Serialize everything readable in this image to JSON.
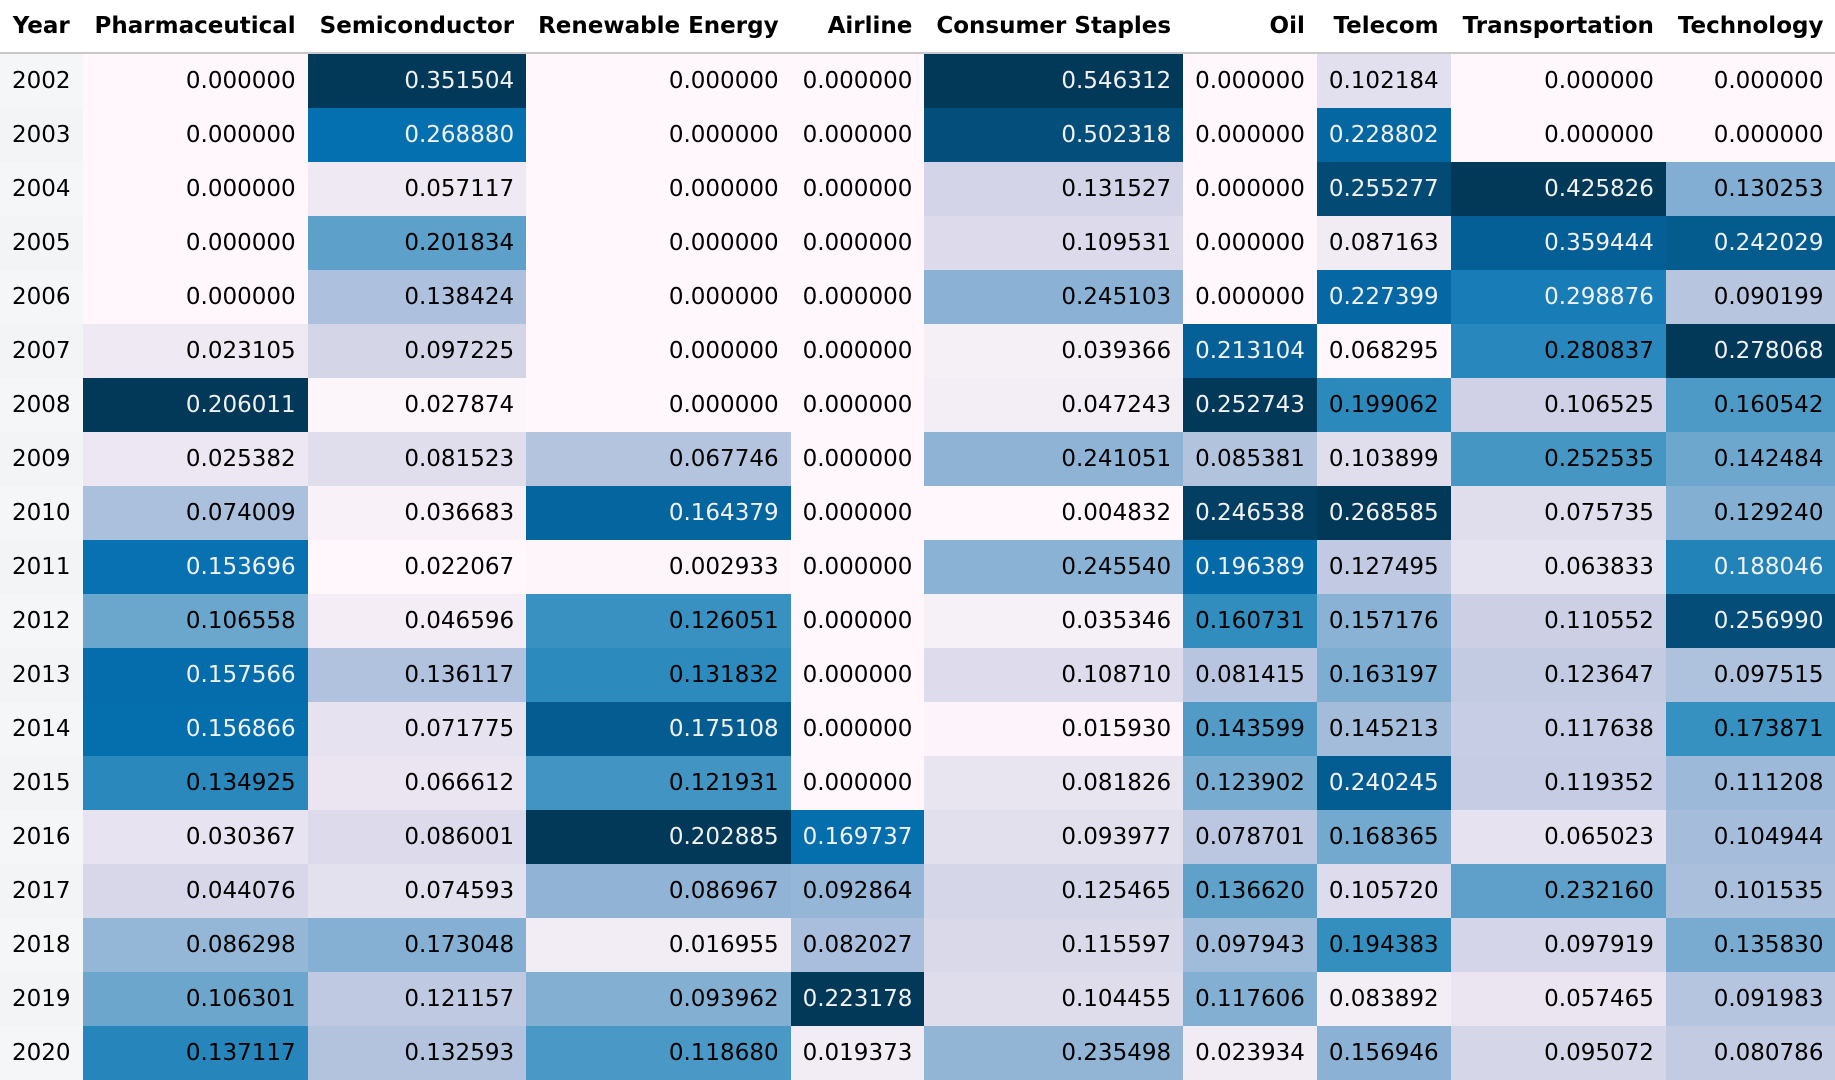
{
  "chart_data": {
    "type": "table",
    "index_label": "Year",
    "columns": [
      "Pharmaceutical",
      "Semiconductor",
      "Renewable Energy",
      "Airline",
      "Consumer Staples",
      "Oil",
      "Telecom",
      "Transportation",
      "Technology"
    ],
    "rows": [
      {
        "year": "2002",
        "values": [
          "0.000000",
          "0.351504",
          "0.000000",
          "0.000000",
          "0.546312",
          "0.000000",
          "0.102184",
          "0.000000",
          "0.000000"
        ]
      },
      {
        "year": "2003",
        "values": [
          "0.000000",
          "0.268880",
          "0.000000",
          "0.000000",
          "0.502318",
          "0.000000",
          "0.228802",
          "0.000000",
          "0.000000"
        ]
      },
      {
        "year": "2004",
        "values": [
          "0.000000",
          "0.057117",
          "0.000000",
          "0.000000",
          "0.131527",
          "0.000000",
          "0.255277",
          "0.425826",
          "0.130253"
        ]
      },
      {
        "year": "2005",
        "values": [
          "0.000000",
          "0.201834",
          "0.000000",
          "0.000000",
          "0.109531",
          "0.000000",
          "0.087163",
          "0.359444",
          "0.242029"
        ]
      },
      {
        "year": "2006",
        "values": [
          "0.000000",
          "0.138424",
          "0.000000",
          "0.000000",
          "0.245103",
          "0.000000",
          "0.227399",
          "0.298876",
          "0.090199"
        ]
      },
      {
        "year": "2007",
        "values": [
          "0.023105",
          "0.097225",
          "0.000000",
          "0.000000",
          "0.039366",
          "0.213104",
          "0.068295",
          "0.280837",
          "0.278068"
        ]
      },
      {
        "year": "2008",
        "values": [
          "0.206011",
          "0.027874",
          "0.000000",
          "0.000000",
          "0.047243",
          "0.252743",
          "0.199062",
          "0.106525",
          "0.160542"
        ]
      },
      {
        "year": "2009",
        "values": [
          "0.025382",
          "0.081523",
          "0.067746",
          "0.000000",
          "0.241051",
          "0.085381",
          "0.103899",
          "0.252535",
          "0.142484"
        ]
      },
      {
        "year": "2010",
        "values": [
          "0.074009",
          "0.036683",
          "0.164379",
          "0.000000",
          "0.004832",
          "0.246538",
          "0.268585",
          "0.075735",
          "0.129240"
        ]
      },
      {
        "year": "2011",
        "values": [
          "0.153696",
          "0.022067",
          "0.002933",
          "0.000000",
          "0.245540",
          "0.196389",
          "0.127495",
          "0.063833",
          "0.188046"
        ]
      },
      {
        "year": "2012",
        "values": [
          "0.106558",
          "0.046596",
          "0.126051",
          "0.000000",
          "0.035346",
          "0.160731",
          "0.157176",
          "0.110552",
          "0.256990"
        ]
      },
      {
        "year": "2013",
        "values": [
          "0.157566",
          "0.136117",
          "0.131832",
          "0.000000",
          "0.108710",
          "0.081415",
          "0.163197",
          "0.123647",
          "0.097515"
        ]
      },
      {
        "year": "2014",
        "values": [
          "0.156866",
          "0.071775",
          "0.175108",
          "0.000000",
          "0.015930",
          "0.143599",
          "0.145213",
          "0.117638",
          "0.173871"
        ]
      },
      {
        "year": "2015",
        "values": [
          "0.134925",
          "0.066612",
          "0.121931",
          "0.000000",
          "0.081826",
          "0.123902",
          "0.240245",
          "0.119352",
          "0.111208"
        ]
      },
      {
        "year": "2016",
        "values": [
          "0.030367",
          "0.086001",
          "0.202885",
          "0.169737",
          "0.093977",
          "0.078701",
          "0.168365",
          "0.065023",
          "0.104944"
        ]
      },
      {
        "year": "2017",
        "values": [
          "0.044076",
          "0.074593",
          "0.086967",
          "0.092864",
          "0.125465",
          "0.136620",
          "0.105720",
          "0.232160",
          "0.101535"
        ]
      },
      {
        "year": "2018",
        "values": [
          "0.086298",
          "0.173048",
          "0.016955",
          "0.082027",
          "0.115597",
          "0.097943",
          "0.194383",
          "0.097919",
          "0.135830"
        ]
      },
      {
        "year": "2019",
        "values": [
          "0.106301",
          "0.121157",
          "0.093962",
          "0.223178",
          "0.104455",
          "0.117606",
          "0.083892",
          "0.057465",
          "0.091983"
        ]
      },
      {
        "year": "2020",
        "values": [
          "0.137117",
          "0.132593",
          "0.118680",
          "0.019373",
          "0.235498",
          "0.023934",
          "0.156946",
          "0.095072",
          "0.080786"
        ]
      }
    ],
    "colormap": "PuBu",
    "color_scale": "per-column min to max",
    "colors": {
      "low": "#fff7fb",
      "high": "#023858",
      "text_dark": "#000000",
      "text_light": "#f1f1f1"
    }
  }
}
